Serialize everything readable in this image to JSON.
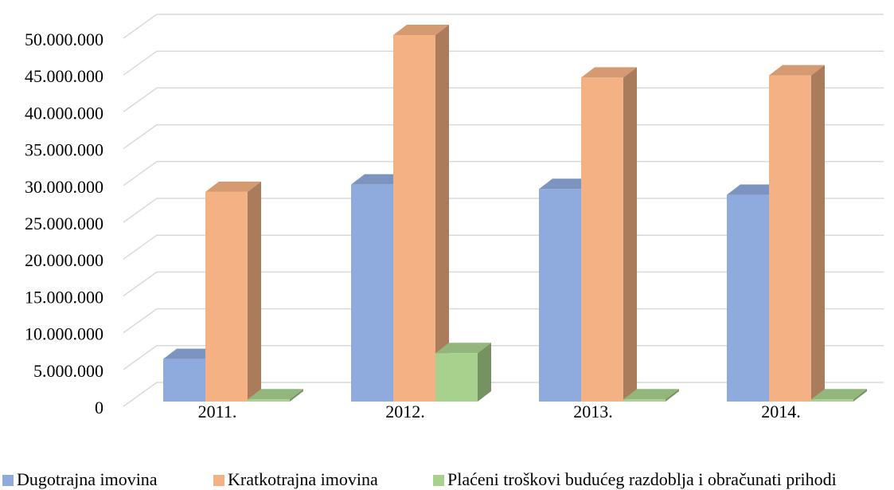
{
  "chart_data": {
    "type": "bar3d",
    "categories": [
      "2011.",
      "2012.",
      "2013.",
      "2014."
    ],
    "series": [
      {
        "name": "Dugotrajna imovina",
        "color": "#8faadc",
        "values": [
          5800000,
          29600000,
          29000000,
          28200000
        ]
      },
      {
        "name": "Kratkotrajna imovina",
        "color": "#f4b183",
        "values": [
          28600000,
          50000000,
          44200000,
          44500000
        ]
      },
      {
        "name": "Plaćeni troškovi budućeg razdoblja i obračunati prihodi",
        "color": "#a9d18e",
        "values": [
          300000,
          6600000,
          300000,
          300000
        ]
      }
    ],
    "ylim": [
      0,
      50000000
    ],
    "yticks": [
      0,
      {
        "value": 5000000,
        "label": "5.000.000"
      },
      {
        "value": 10000000,
        "label": "10.000.000"
      },
      {
        "value": 15000000,
        "label": "15.000.000"
      },
      {
        "value": 20000000,
        "label": "20.000.000"
      },
      {
        "value": 25000000,
        "label": "25.000.000"
      },
      {
        "value": 30000000,
        "label": "30.000.000"
      },
      {
        "value": 35000000,
        "label": "35.000.000"
      },
      {
        "value": 40000000,
        "label": "40.000.000"
      },
      {
        "value": 45000000,
        "label": "45.000.000"
      },
      {
        "value": 50000000,
        "label": "50.000.000"
      }
    ],
    "grid": true,
    "legend": "bottom"
  }
}
